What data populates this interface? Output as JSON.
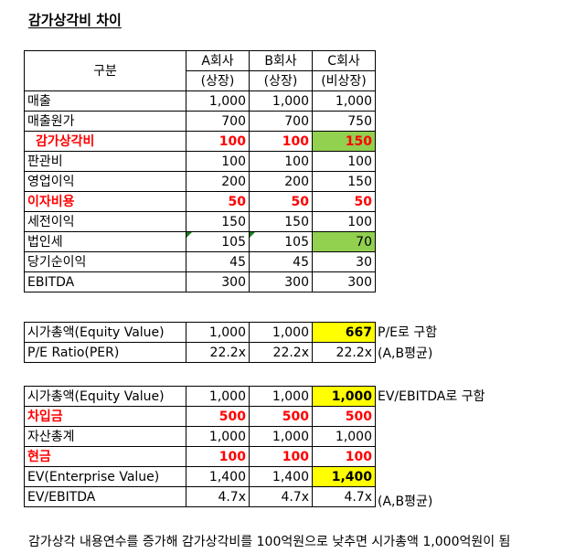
{
  "title": "감가상각비 차이",
  "table1": {
    "header": {
      "label": "구분",
      "cols": [
        {
          "name": "A회사",
          "sub": "(상장)"
        },
        {
          "name": "B회사",
          "sub": "(상장)"
        },
        {
          "name": "C회사",
          "sub": "(비상장)"
        }
      ]
    },
    "rows": [
      {
        "label": "매출",
        "a": "1,000",
        "b": "1,000",
        "c": "1,000"
      },
      {
        "label": "매출원가",
        "a": "700",
        "b": "700",
        "c": "750"
      },
      {
        "label": "감가상각비",
        "a": "100",
        "b": "100",
        "c": "150"
      },
      {
        "label": "판관비",
        "a": "100",
        "b": "100",
        "c": "100"
      },
      {
        "label": "영업이익",
        "a": "200",
        "b": "200",
        "c": "150"
      },
      {
        "label": "이자비용",
        "a": "50",
        "b": "50",
        "c": "50"
      },
      {
        "label": "세전이익",
        "a": "150",
        "b": "150",
        "c": "100"
      },
      {
        "label": "법인세",
        "a": "105",
        "b": "105",
        "c": "70"
      },
      {
        "label": "당기순이익",
        "a": "45",
        "b": "45",
        "c": "30"
      },
      {
        "label": "EBITDA",
        "a": "300",
        "b": "300",
        "c": "300"
      }
    ]
  },
  "table2": {
    "rows": [
      {
        "label": "시가총액(Equity Value)",
        "a": "1,000",
        "b": "1,000",
        "c": "667"
      },
      {
        "label": "P/E Ratio(PER)",
        "a": "22.2x",
        "b": "22.2x",
        "c": "22.2x"
      }
    ],
    "notes": [
      "P/E로 구함",
      "(A,B평균)"
    ]
  },
  "table3": {
    "rows": [
      {
        "label": "시가총액(Equity Value)",
        "a": "1,000",
        "b": "1,000",
        "c": "1,000"
      },
      {
        "label": "차입금",
        "a": "500",
        "b": "500",
        "c": "500"
      },
      {
        "label": "자산총계",
        "a": "1,000",
        "b": "1,000",
        "c": "1,000"
      },
      {
        "label": "현금",
        "a": "100",
        "b": "100",
        "c": "100"
      },
      {
        "label": "EV(Enterprise Value)",
        "a": "1,400",
        "b": "1,400",
        "c": "1,400"
      },
      {
        "label": "EV/EBITDA",
        "a": "4.7x",
        "b": "4.7x",
        "c": "4.7x"
      }
    ],
    "notes": [
      "EV/EBITDA로 구함",
      "(A,B평균)"
    ]
  },
  "footer": "감가상각 내용연수를 증가해 감가상각비를 100억원으로 낮추면 시가총액 1,000억원이 됨",
  "colors": {
    "red": "#ff0000",
    "green_fill": "#92d050",
    "yellow_fill": "#ffff00"
  }
}
